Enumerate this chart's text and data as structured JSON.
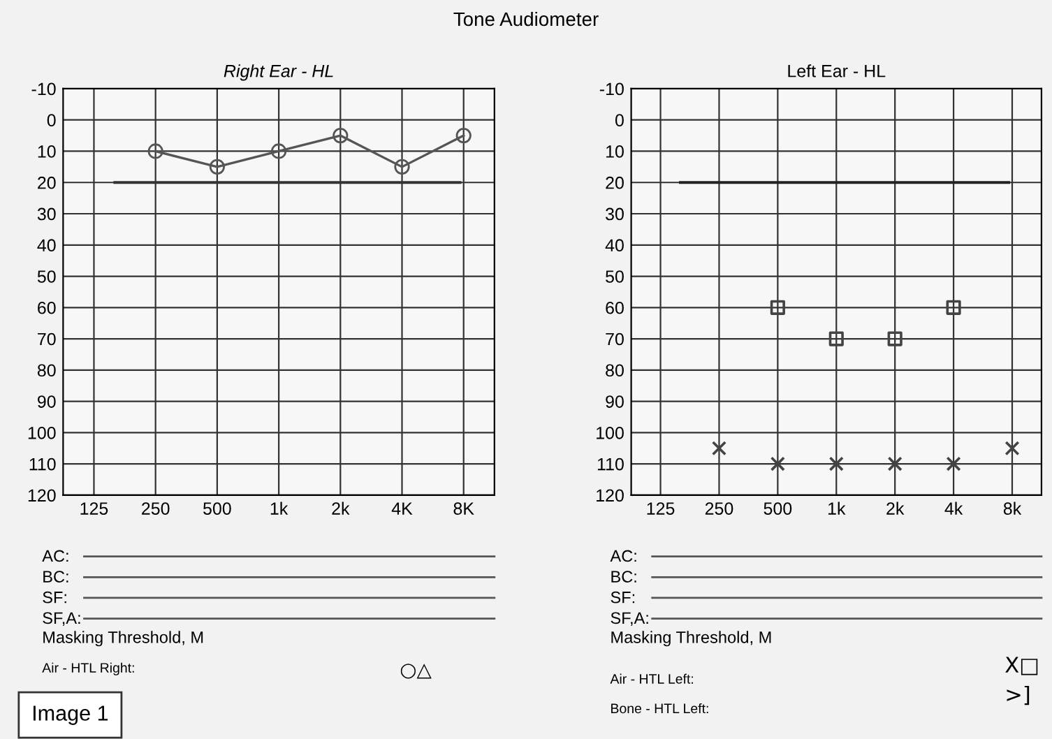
{
  "chart_data": [
    {
      "type": "line",
      "title": "Right Ear - HL",
      "categories": [
        "125",
        "250",
        "500",
        "1k",
        "2k",
        "4K",
        "8K"
      ],
      "series": [
        {
          "color": "#555555",
          "values": [
            null,
            10,
            15,
            10,
            5,
            15,
            5
          ],
          "marker": "circle"
        }
      ],
      "ylim": [
        120,
        -10
      ],
      "yticks": [
        -10,
        0,
        10,
        20,
        30,
        40,
        50,
        60,
        70,
        80,
        90,
        100,
        110,
        120
      ],
      "grid": true,
      "line_style": "solid",
      "ref_lines": [
        {
          "axis": "y",
          "value": 20,
          "color": "#333333"
        }
      ],
      "annotations": [
        "Tone Audiometer",
        "AC:",
        "BC:",
        "SF:",
        "SF,A:",
        "Masking Threshold, M",
        "Air - HTL Right:",
        "○△",
        "Image 1"
      ]
    },
    {
      "type": "scatter",
      "title": "Left Ear - HL",
      "categories": [
        "125",
        "250",
        "500",
        "1k",
        "2k",
        "4k",
        "8k"
      ],
      "series": [
        {
          "color": "#444444",
          "values": [
            null,
            105,
            110,
            110,
            110,
            110,
            105
          ],
          "marker": "cross"
        },
        {
          "color": "#444444",
          "values": [
            null,
            null,
            60,
            70,
            70,
            60,
            null
          ],
          "marker": "square"
        }
      ],
      "ylim": [
        120,
        -10
      ],
      "yticks": [
        -10,
        0,
        10,
        20,
        30,
        40,
        50,
        60,
        70,
        80,
        90,
        100,
        110,
        120
      ],
      "grid": true,
      "ref_lines": [
        {
          "axis": "y",
          "value": 20,
          "color": "#222222"
        }
      ],
      "annotations": [
        "AC:",
        "BC:",
        "SF:",
        "SF,A:",
        "Masking Threshold, M",
        "Air - HTL Left:",
        "Bone - HTL Left:",
        "X□",
        ">]"
      ]
    }
  ]
}
